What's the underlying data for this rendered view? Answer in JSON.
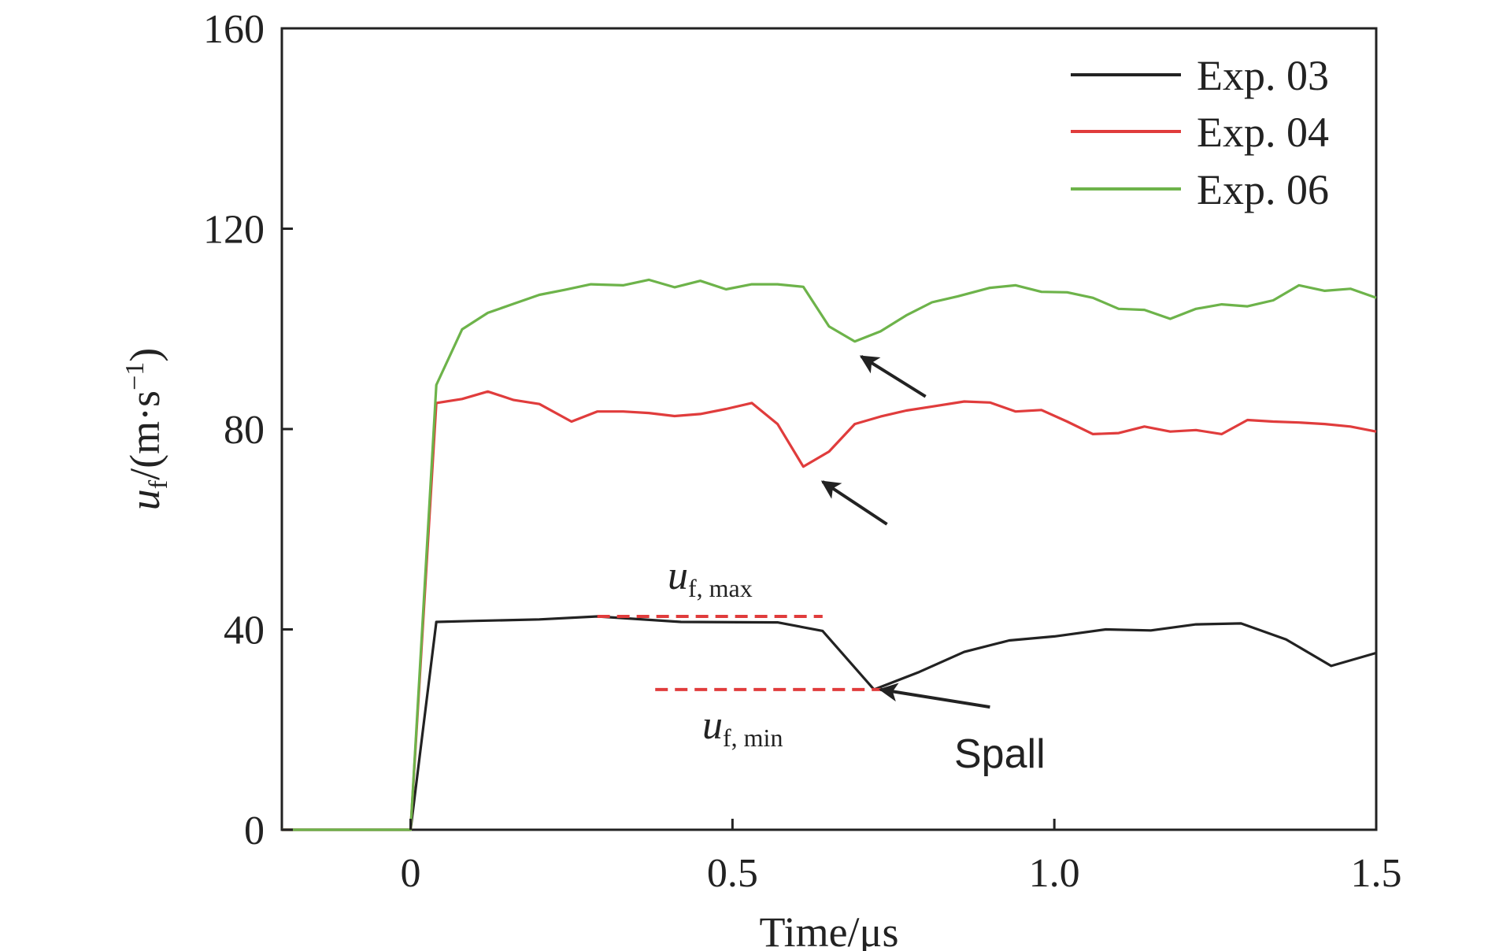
{
  "chart_data": {
    "type": "line",
    "title": "",
    "xlabel": "Time/μs",
    "ylabel": {
      "main": "u",
      "sub": "f",
      "unit_open": "/(m·s",
      "unit_exp": "−1",
      "unit_close": ")"
    },
    "xlim": [
      -0.2,
      1.5
    ],
    "ylim": [
      0,
      160
    ],
    "xticks": [
      0,
      0.5,
      1.0,
      1.5
    ],
    "xtick_labels": [
      "0",
      "0.5",
      "1.0",
      "1.5"
    ],
    "yticks": [
      0,
      40,
      80,
      120,
      160
    ],
    "ytick_labels": [
      "0",
      "40",
      "80",
      "120",
      "160"
    ],
    "grid": false,
    "legend_position": "top-right",
    "series": [
      {
        "name": "Exp. 03",
        "color": "#222222",
        "x": [
          -0.2,
          0.0,
          0.04,
          0.1,
          0.2,
          0.29,
          0.42,
          0.57,
          0.64,
          0.72,
          0.79,
          0.86,
          0.93,
          1.0,
          1.08,
          1.15,
          1.22,
          1.29,
          1.36,
          1.43,
          1.5
        ],
        "y": [
          0,
          0,
          41.5,
          41.7,
          42.0,
          42.6,
          41.5,
          41.4,
          39.7,
          28.0,
          31.5,
          35.5,
          37.8,
          38.6,
          40.0,
          39.8,
          41.0,
          41.2,
          38.0,
          32.7,
          35.3
        ]
      },
      {
        "name": "Exp. 04",
        "color": "#e03c3c",
        "x": [
          -0.2,
          0.0,
          0.04,
          0.08,
          0.12,
          0.16,
          0.2,
          0.25,
          0.29,
          0.33,
          0.37,
          0.41,
          0.45,
          0.49,
          0.53,
          0.57,
          0.61,
          0.65,
          0.69,
          0.73,
          0.77,
          0.81,
          0.86,
          0.9,
          0.94,
          0.98,
          1.02,
          1.06,
          1.1,
          1.14,
          1.18,
          1.22,
          1.26,
          1.3,
          1.34,
          1.38,
          1.42,
          1.46,
          1.5
        ],
        "y": [
          0,
          0,
          85.2,
          86.0,
          87.5,
          85.8,
          85.0,
          81.5,
          83.5,
          83.5,
          83.2,
          82.6,
          83.0,
          84.0,
          85.2,
          81.0,
          72.5,
          75.5,
          81.0,
          82.5,
          83.7,
          84.5,
          85.5,
          85.3,
          83.5,
          83.8,
          81.5,
          79.0,
          79.2,
          80.5,
          79.5,
          79.8,
          79.0,
          81.8,
          81.5,
          81.3,
          81.0,
          80.5,
          79.5
        ]
      },
      {
        "name": "Exp. 06",
        "color": "#6db34a",
        "x": [
          -0.2,
          0.0,
          0.04,
          0.08,
          0.12,
          0.16,
          0.2,
          0.24,
          0.28,
          0.33,
          0.37,
          0.41,
          0.45,
          0.49,
          0.53,
          0.57,
          0.61,
          0.65,
          0.69,
          0.73,
          0.77,
          0.81,
          0.85,
          0.9,
          0.94,
          0.98,
          1.02,
          1.06,
          1.1,
          1.14,
          1.18,
          1.22,
          1.26,
          1.3,
          1.34,
          1.38,
          1.42,
          1.46,
          1.5
        ],
        "y": [
          0,
          0,
          88.8,
          99.9,
          103.2,
          105.0,
          106.8,
          107.8,
          108.9,
          108.7,
          109.8,
          108.3,
          109.6,
          107.9,
          108.9,
          108.9,
          108.4,
          100.5,
          97.5,
          99.5,
          102.7,
          105.3,
          106.5,
          108.2,
          108.7,
          107.4,
          107.3,
          106.2,
          104.0,
          103.8,
          102.0,
          104.0,
          104.9,
          104.5,
          105.7,
          108.7,
          107.6,
          108.0,
          106.2
        ]
      }
    ],
    "annotations": {
      "uf_max": {
        "main": "u",
        "sub": "f, max",
        "line_y": 42.6,
        "line_x": [
          0.29,
          0.64
        ],
        "line_color": "#e03c3c"
      },
      "uf_min": {
        "main": "u",
        "sub": "f, min",
        "line_y": 28.0,
        "line_x": [
          0.38,
          0.73
        ],
        "line_color": "#e03c3c"
      },
      "spall": {
        "text": "Spall"
      },
      "arrows": [
        {
          "from": [
            0.9,
            24.5
          ],
          "to": [
            0.73,
            28.0
          ]
        },
        {
          "from": [
            0.74,
            61.0
          ],
          "to": [
            0.64,
            69.5
          ]
        },
        {
          "from": [
            0.8,
            86.5
          ],
          "to": [
            0.7,
            94.5
          ]
        }
      ]
    }
  }
}
